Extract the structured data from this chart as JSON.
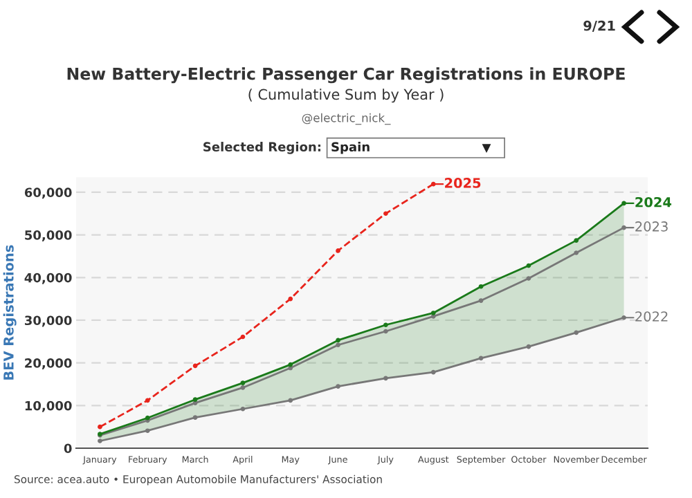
{
  "chart_data": {
    "type": "line",
    "title": "New Battery-Electric Passenger Car Registrations in EUROPE",
    "subtitle": "( Cumulative Sum by Year )",
    "ylabel": "BEV Registrations",
    "categories": [
      "January",
      "February",
      "March",
      "April",
      "May",
      "June",
      "July",
      "August",
      "September",
      "October",
      "November",
      "December"
    ],
    "series": [
      {
        "name": "2022",
        "color": "#777777",
        "line_style": "solid",
        "values": [
          1700,
          4100,
          7200,
          9200,
          11200,
          14500,
          16400,
          17800,
          21100,
          23800,
          27100,
          30600
        ]
      },
      {
        "name": "2023",
        "color": "#777777",
        "line_style": "solid",
        "values": [
          3000,
          6500,
          10600,
          14200,
          18800,
          24200,
          27400,
          30900,
          34600,
          39800,
          45800,
          51700
        ]
      },
      {
        "name": "2024",
        "color": "#1a7a1a",
        "line_style": "solid",
        "values": [
          3300,
          7100,
          11400,
          15300,
          19600,
          25300,
          28900,
          31700,
          37900,
          42800,
          48700,
          57400
        ],
        "lower": [
          1700,
          4100,
          7200,
          9200,
          11200,
          14500,
          16400,
          17800,
          21100,
          23800,
          27100,
          30600
        ],
        "upper": [
          3300,
          7100,
          11400,
          15300,
          19600,
          25300,
          28900,
          31700,
          37900,
          42800,
          48700,
          57400
        ]
      },
      {
        "name": "2025",
        "color": "#e8241c",
        "line_style": "dashed",
        "values": [
          5000,
          11200,
          19300,
          26100,
          35000,
          46300,
          55000,
          61900,
          null,
          null,
          null,
          null
        ]
      }
    ],
    "ylim": [
      0,
      63500
    ],
    "yticks": [
      {
        "value": 0,
        "label": "0"
      },
      {
        "value": 10000,
        "label": "10,000"
      },
      {
        "value": 20000,
        "label": "20,000"
      },
      {
        "value": 30000,
        "label": "30,000"
      },
      {
        "value": 40000,
        "label": "40,000"
      },
      {
        "value": 50000,
        "label": "50,000"
      },
      {
        "value": 60000,
        "label": "60,000"
      }
    ],
    "grid": "y",
    "legend": "right",
    "marker": "circle",
    "annotations": [
      "9/21",
      "@electric_nick_",
      "Selected Region:",
      "Spain",
      "Source: acea.auto • European Automobile Manufacturers' Association"
    ]
  }
}
